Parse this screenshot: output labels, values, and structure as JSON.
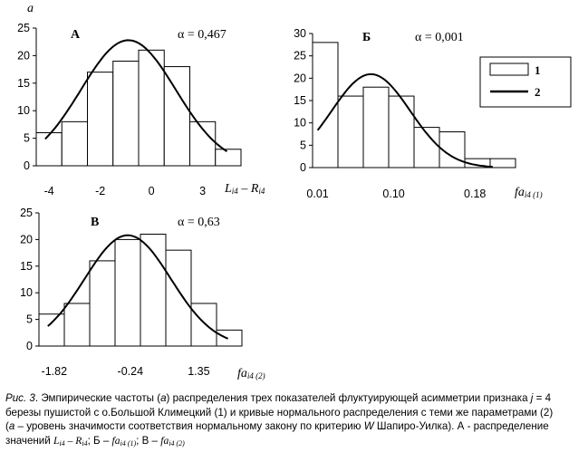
{
  "axis_symbol": "a",
  "chart_data": [
    {
      "type": "bar",
      "panel_letter": "А",
      "alpha_label": "α = 0,467",
      "xlabel_main": "L",
      "xlabel_sub": "i4",
      "xlabel_minus": "– R",
      "xlabel_sub2": "i4",
      "ylim": [
        0,
        25
      ],
      "yticks": [
        "0",
        "5",
        "10",
        "15",
        "20",
        "25"
      ],
      "xticks": [
        {
          "label": "-4",
          "bin": 0.5
        },
        {
          "label": "-2",
          "bin": 2.5
        },
        {
          "label": "0",
          "bin": 4.5
        },
        {
          "label": "3",
          "bin": 6.5
        }
      ],
      "values": [
        6,
        8,
        17,
        19,
        21,
        18,
        8,
        3
      ],
      "curve": {
        "mean": 3.6,
        "sd": 1.85,
        "peak": 22.8,
        "from": 0.35,
        "to": 7.45
      }
    },
    {
      "type": "bar",
      "panel_letter": "Б",
      "alpha_label": "α = 0,001",
      "xlabel_main": "fa",
      "xlabel_sub": "i4 (1)",
      "ylim": [
        0,
        30
      ],
      "yticks": [
        "0",
        "5",
        "10",
        "15",
        "20",
        "25",
        "30"
      ],
      "xticks": [
        {
          "label": "0.01",
          "bin": 0.2
        },
        {
          "label": "0.10",
          "bin": 3.2
        },
        {
          "label": "0.18",
          "bin": 6.4
        }
      ],
      "values": [
        28,
        16,
        18,
        16,
        9,
        8,
        2,
        2
      ],
      "curve": {
        "mean": 2.3,
        "sd": 1.55,
        "peak": 20.9,
        "from": 0.2,
        "to": 7.1
      },
      "legend": [
        {
          "key": "bar",
          "label": "1"
        },
        {
          "key": "line",
          "label": "2"
        }
      ]
    },
    {
      "type": "bar",
      "panel_letter": "В",
      "alpha_label": "α = 0,63",
      "xlabel_main": "fa",
      "xlabel_sub": "i4 (2)",
      "ylim": [
        0,
        25
      ],
      "yticks": [
        "0",
        "5",
        "10",
        "15",
        "20",
        "25"
      ],
      "xticks": [
        {
          "label": "-1.82",
          "bin": 0.6
        },
        {
          "label": "-0.24",
          "bin": 3.6
        },
        {
          "label": "1.35",
          "bin": 6.3
        }
      ],
      "values": [
        6,
        8,
        16,
        20,
        21,
        18,
        8,
        3
      ],
      "curve": {
        "mean": 3.5,
        "sd": 1.7,
        "peak": 20.8,
        "from": 0.35,
        "to": 7.45
      }
    }
  ],
  "caption": {
    "fig_label": "Рис. 3",
    "line1_a": ". Эмпирические частоты (",
    "a_sym": "а",
    "line1_b": ") распределения трех показателей флуктуирующей асимметрии признака ",
    "j_sym": "j",
    "line1_c": " = 4",
    "line2": "березы пушистой с о.Большой Климецкий (1) и кривые нормального распределения с теми же параметрами (2)",
    "line3_a": "(",
    "line3_b": " – уровень значимости соответствия нормальному закону по критерию ",
    "w_sym": "W",
    "line3_c": " Шапиро-Уилка).  А -  распределение",
    "line4_a": "значений ",
    "l_sym": "L",
    "l_sub": "i4",
    "l_minus": " – ",
    "r_sym": "R",
    "r_sub": "i4",
    "line4_b": "; Б – ",
    "fa1": "fa",
    "fa1_sub": "i4 (1)",
    "line4_c": "; В – ",
    "fa2": "fa",
    "fa2_sub": "i4 (2)"
  }
}
